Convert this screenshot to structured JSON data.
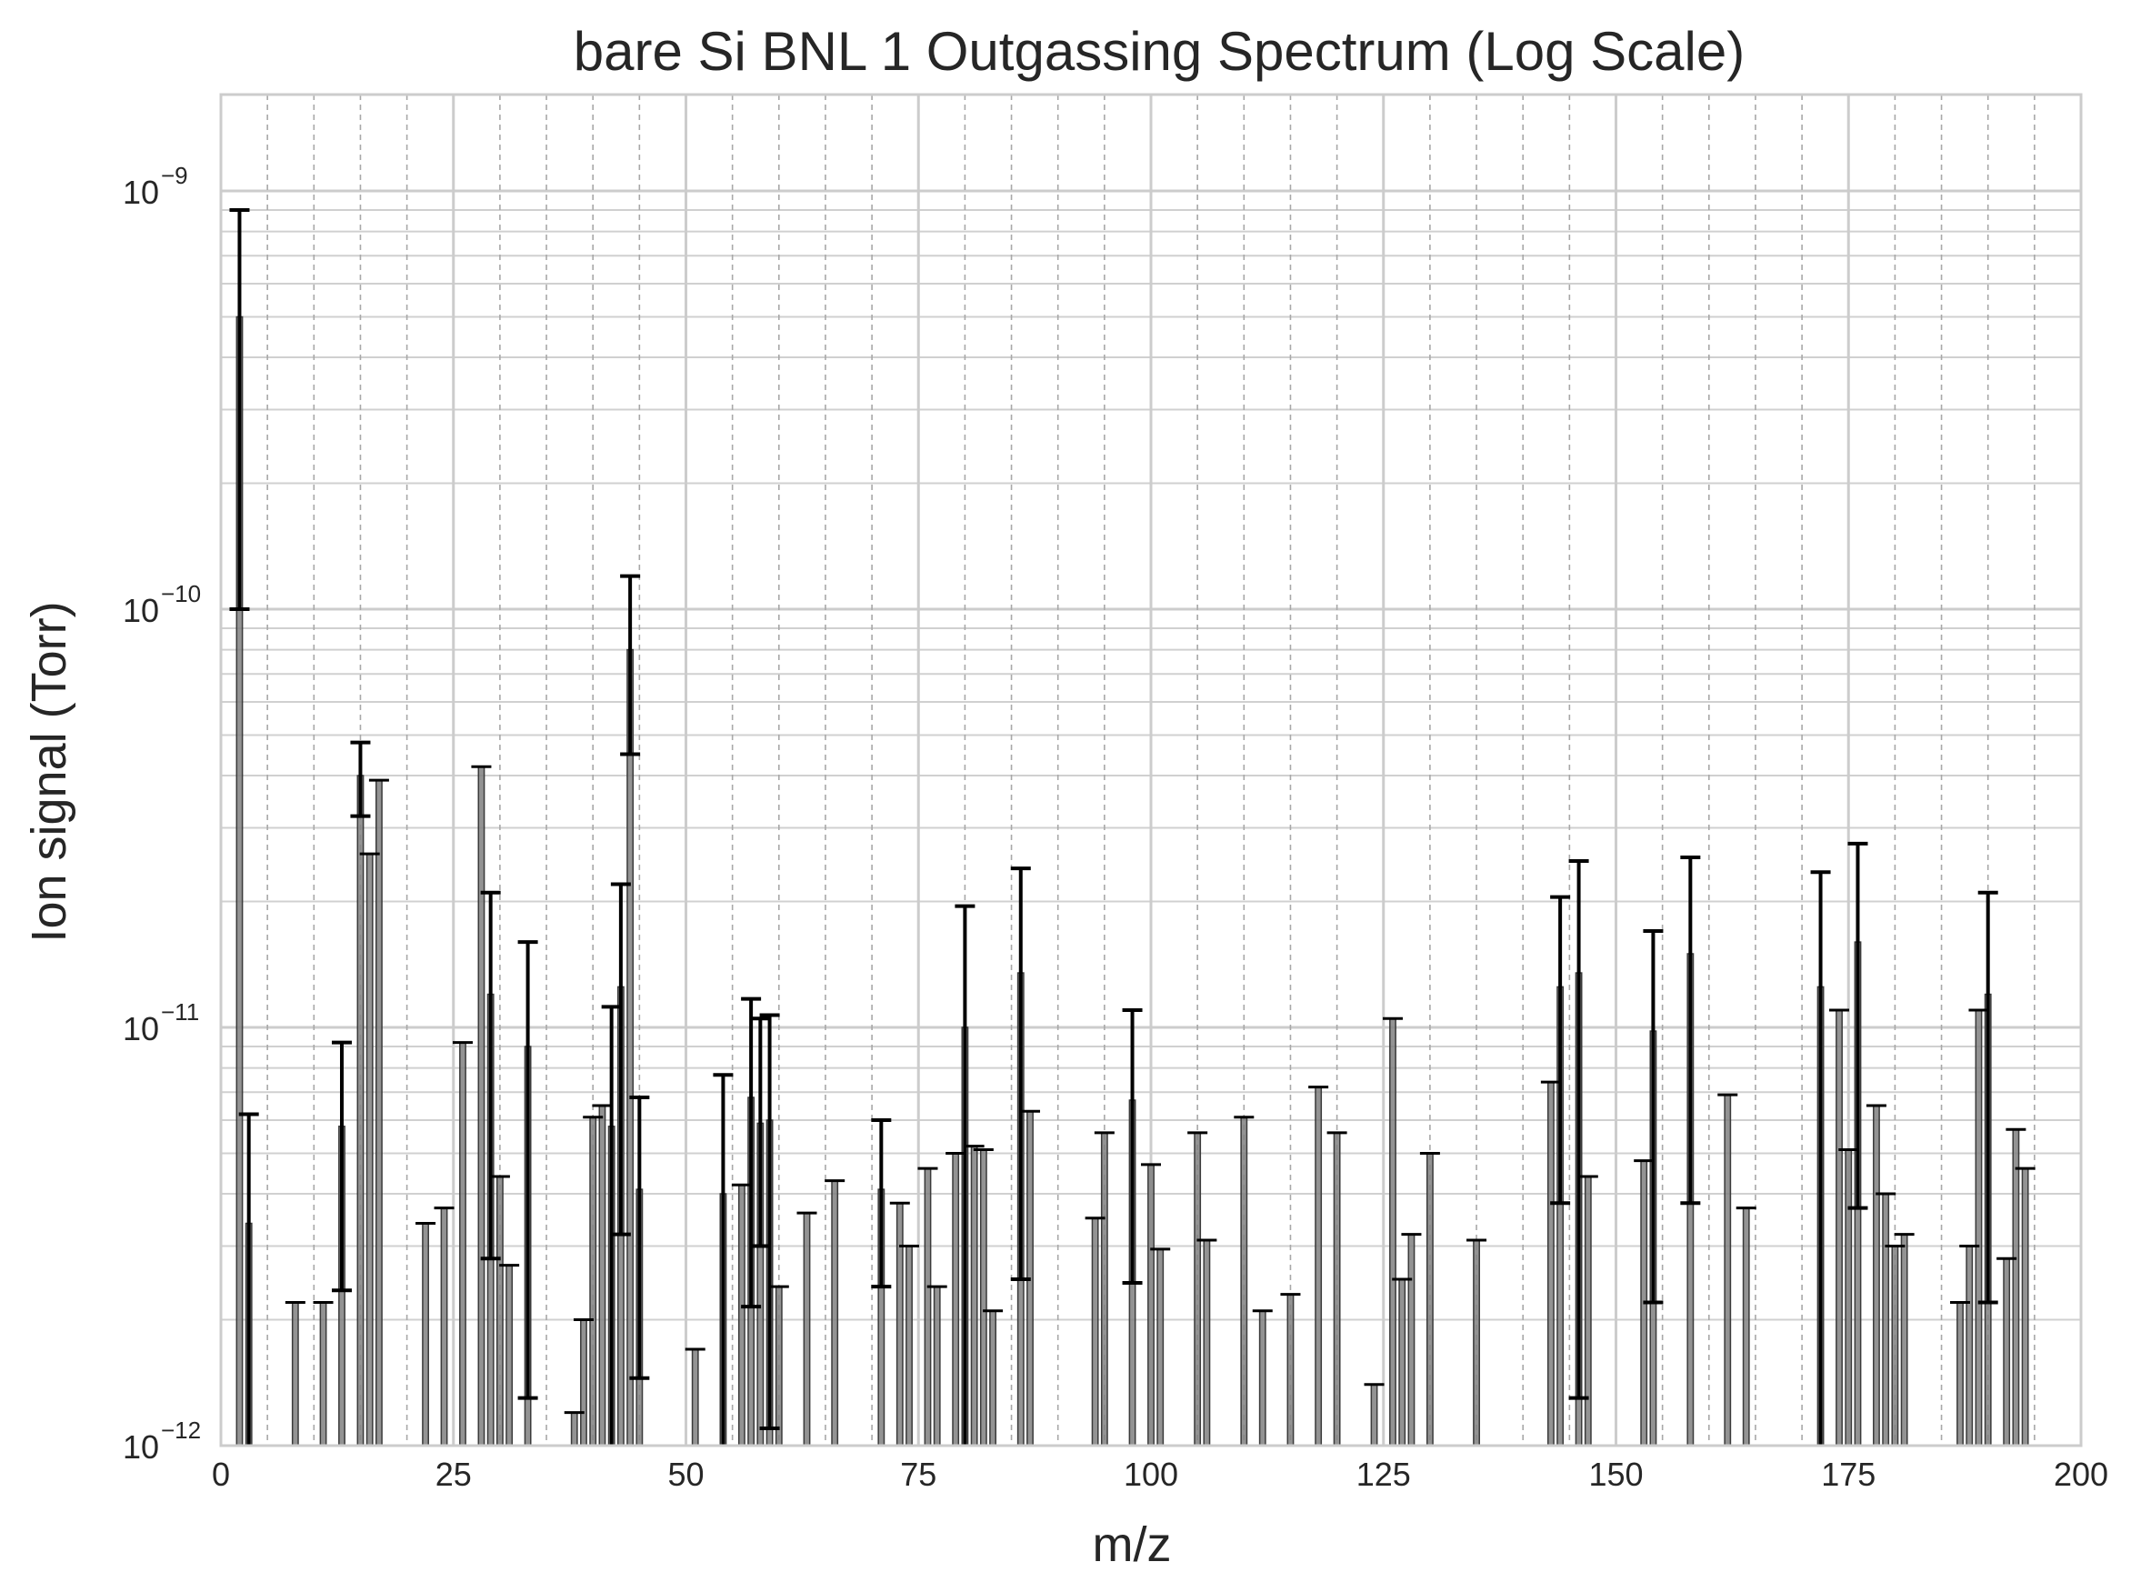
{
  "chart_data": {
    "type": "bar",
    "title": "bare Si BNL 1 Outgassing Spectrum (Log Scale)",
    "xlabel": "m/z",
    "ylabel": "Ion signal (Torr)",
    "xlim": [
      0,
      200
    ],
    "ylim": [
      1e-12,
      1.7e-09
    ],
    "y_scale": "log",
    "grid": true,
    "x_ticks": [
      0,
      25,
      50,
      75,
      100,
      125,
      150,
      175,
      200
    ],
    "x_tick_labels": [
      "0",
      "25",
      "50",
      "75",
      "100",
      "125",
      "150",
      "175",
      "200"
    ],
    "y_ticks": [
      {
        "value": 1e-12,
        "base": "10",
        "exp": "−12"
      },
      {
        "value": 1e-11,
        "base": "10",
        "exp": "−11"
      },
      {
        "value": 1e-10,
        "base": "10",
        "exp": "−10"
      },
      {
        "value": 1e-09,
        "base": "10",
        "exp": "−9"
      }
    ],
    "bar_color": "#808080",
    "error_color": "#000000",
    "points": [
      {
        "x": 2,
        "y": 5e-10,
        "lo": 1e-10,
        "hi": 9e-10
      },
      {
        "x": 3,
        "y": 3.4e-12,
        "lo": 1e-12,
        "hi": 6.2e-12
      },
      {
        "x": 8,
        "y": 2.2e-12
      },
      {
        "x": 11,
        "y": 2.2e-12
      },
      {
        "x": 13,
        "y": 5.8e-12,
        "lo": 2.35e-12,
        "hi": 9.2e-12
      },
      {
        "x": 15,
        "y": 4e-11,
        "lo": 3.2e-11,
        "hi": 4.8e-11
      },
      {
        "x": 16,
        "y": 2.6e-11
      },
      {
        "x": 17,
        "y": 3.9e-11
      },
      {
        "x": 22,
        "y": 3.4e-12
      },
      {
        "x": 24,
        "y": 3.7e-12
      },
      {
        "x": 26,
        "y": 9.2e-12
      },
      {
        "x": 28,
        "y": 4.2e-11
      },
      {
        "x": 29,
        "y": 1.2e-11,
        "lo": 2.8e-12,
        "hi": 2.1e-11
      },
      {
        "x": 30,
        "y": 4.4e-12
      },
      {
        "x": 31,
        "y": 2.7e-12
      },
      {
        "x": 33,
        "y": 9e-12,
        "lo": 1.3e-12,
        "hi": 1.6e-11
      },
      {
        "x": 38,
        "y": 1.2e-12
      },
      {
        "x": 39,
        "y": 2e-12
      },
      {
        "x": 40,
        "y": 6.1e-12
      },
      {
        "x": 41,
        "y": 6.5e-12
      },
      {
        "x": 42,
        "y": 5.8e-12,
        "lo": 1e-12,
        "hi": 1.12e-11
      },
      {
        "x": 43,
        "y": 1.25e-11,
        "lo": 3.2e-12,
        "hi": 2.2e-11
      },
      {
        "x": 44,
        "y": 8e-11,
        "lo": 4.5e-11,
        "hi": 1.2e-10
      },
      {
        "x": 45,
        "y": 4.1e-12,
        "lo": 1.45e-12,
        "hi": 6.8e-12
      },
      {
        "x": 51,
        "y": 1.7e-12
      },
      {
        "x": 54,
        "y": 4e-12,
        "lo": 1e-12,
        "hi": 7.7e-12
      },
      {
        "x": 56,
        "y": 4.2e-12
      },
      {
        "x": 57,
        "y": 6.8e-12,
        "lo": 2.15e-12,
        "hi": 1.17e-11
      },
      {
        "x": 58,
        "y": 5.9e-12,
        "lo": 3e-12,
        "hi": 1.05e-11
      },
      {
        "x": 59,
        "y": 6e-12,
        "lo": 1.1e-12,
        "hi": 1.07e-11
      },
      {
        "x": 60,
        "y": 2.4e-12
      },
      {
        "x": 63,
        "y": 3.6e-12
      },
      {
        "x": 66,
        "y": 4.3e-12
      },
      {
        "x": 71,
        "y": 4.1e-12,
        "lo": 2.4e-12,
        "hi": 6e-12
      },
      {
        "x": 73,
        "y": 3.8e-12
      },
      {
        "x": 74,
        "y": 3e-12
      },
      {
        "x": 76,
        "y": 4.6e-12
      },
      {
        "x": 77,
        "y": 2.4e-12
      },
      {
        "x": 79,
        "y": 5e-12
      },
      {
        "x": 80,
        "y": 1e-11,
        "lo": 1e-12,
        "hi": 1.95e-11
      },
      {
        "x": 81,
        "y": 5.2e-12
      },
      {
        "x": 82,
        "y": 5.1e-12
      },
      {
        "x": 83,
        "y": 2.1e-12
      },
      {
        "x": 86,
        "y": 1.35e-11,
        "lo": 2.5e-12,
        "hi": 2.4e-11
      },
      {
        "x": 87,
        "y": 6.3e-12
      },
      {
        "x": 94,
        "y": 3.5e-12
      },
      {
        "x": 95,
        "y": 5.6e-12
      },
      {
        "x": 98,
        "y": 6.7e-12,
        "lo": 2.45e-12,
        "hi": 1.1e-11
      },
      {
        "x": 100,
        "y": 4.7e-12
      },
      {
        "x": 101,
        "y": 2.95e-12
      },
      {
        "x": 105,
        "y": 5.6e-12
      },
      {
        "x": 106,
        "y": 3.1e-12
      },
      {
        "x": 110,
        "y": 6.1e-12
      },
      {
        "x": 112,
        "y": 2.1e-12
      },
      {
        "x": 115,
        "y": 2.3e-12
      },
      {
        "x": 118,
        "y": 7.2e-12
      },
      {
        "x": 120,
        "y": 5.6e-12
      },
      {
        "x": 124,
        "y": 1.4e-12
      },
      {
        "x": 126,
        "y": 1.05e-11
      },
      {
        "x": 127,
        "y": 2.5e-12
      },
      {
        "x": 128,
        "y": 3.2e-12
      },
      {
        "x": 130,
        "y": 5e-12
      },
      {
        "x": 135,
        "y": 3.1e-12
      },
      {
        "x": 143,
        "y": 7.4e-12
      },
      {
        "x": 144,
        "y": 1.25e-11,
        "lo": 3.8e-12,
        "hi": 2.05e-11
      },
      {
        "x": 146,
        "y": 1.35e-11,
        "lo": 1.3e-12,
        "hi": 2.5e-11
      },
      {
        "x": 147,
        "y": 4.4e-12
      },
      {
        "x": 153,
        "y": 4.8e-12
      },
      {
        "x": 154,
        "y": 9.8e-12,
        "lo": 2.2e-12,
        "hi": 1.7e-11
      },
      {
        "x": 158,
        "y": 1.5e-11,
        "lo": 3.8e-12,
        "hi": 2.55e-11
      },
      {
        "x": 162,
        "y": 6.9e-12
      },
      {
        "x": 164,
        "y": 3.7e-12
      },
      {
        "x": 172,
        "y": 1.25e-11,
        "lo": 1e-12,
        "hi": 2.35e-11
      },
      {
        "x": 174,
        "y": 1.1e-11
      },
      {
        "x": 175,
        "y": 5.1e-12
      },
      {
        "x": 176,
        "y": 1.6e-11,
        "lo": 3.7e-12,
        "hi": 2.75e-11
      },
      {
        "x": 178,
        "y": 6.5e-12
      },
      {
        "x": 179,
        "y": 4e-12
      },
      {
        "x": 180,
        "y": 3e-12
      },
      {
        "x": 181,
        "y": 3.2e-12
      },
      {
        "x": 187,
        "y": 2.2e-12
      },
      {
        "x": 188,
        "y": 3e-12
      },
      {
        "x": 189,
        "y": 1.1e-11
      },
      {
        "x": 190,
        "y": 1.2e-11,
        "lo": 2.2e-12,
        "hi": 2.1e-11
      },
      {
        "x": 192,
        "y": 2.8e-12
      },
      {
        "x": 193,
        "y": 5.7e-12
      },
      {
        "x": 194,
        "y": 4.6e-12
      }
    ]
  }
}
